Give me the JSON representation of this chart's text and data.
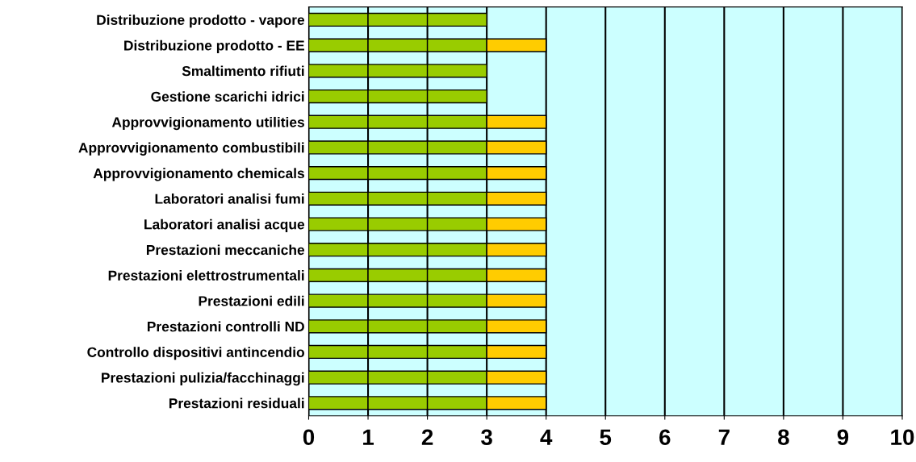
{
  "chart_data": {
    "type": "bar",
    "orientation": "horizontal",
    "stacked": true,
    "categories": [
      "Distribuzione prodotto - vapore",
      "Distribuzione prodotto - EE",
      "Smaltimento rifiuti",
      "Gestione scarichi idrici",
      "Approvvigionamento utilities",
      "Approvvigionamento combustibili",
      "Approvvigionamento chemicals",
      "Laboratori analisi fumi",
      "Laboratori analisi acque",
      "Prestazioni meccaniche",
      "Prestazioni elettrostrumentali",
      "Prestazioni edili",
      "Prestazioni controlli ND",
      "Controllo dispositivi antincendio",
      "Prestazioni pulizia/facchinaggi",
      "Prestazioni residuali"
    ],
    "series": [
      {
        "color": "#99cc00",
        "values": [
          1,
          1,
          1,
          1,
          1,
          1,
          1,
          1,
          1,
          1,
          1,
          1,
          1,
          1,
          1,
          1
        ]
      },
      {
        "color": "#99cc00",
        "values": [
          1,
          1,
          1,
          1,
          1,
          1,
          1,
          1,
          1,
          1,
          1,
          1,
          1,
          1,
          1,
          1
        ]
      },
      {
        "color": "#99cc00",
        "values": [
          1,
          1,
          1,
          1,
          1,
          1,
          1,
          1,
          1,
          1,
          1,
          1,
          1,
          1,
          1,
          1
        ]
      },
      {
        "color": "#ffcc00",
        "values": [
          null,
          1,
          null,
          null,
          1,
          1,
          1,
          1,
          1,
          1,
          1,
          1,
          1,
          1,
          1,
          1
        ]
      }
    ],
    "xlim": [
      0,
      10
    ],
    "xticks": [
      0,
      1,
      2,
      3,
      4,
      5,
      6,
      7,
      8,
      9,
      10
    ],
    "grid": "x",
    "legend": false
  }
}
